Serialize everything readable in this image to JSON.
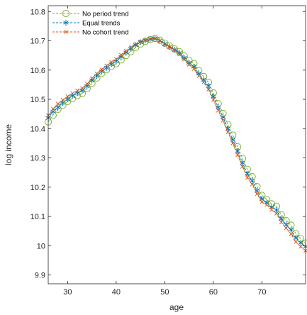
{
  "chart_data": {
    "type": "line",
    "xlabel": "age",
    "ylabel": "log income",
    "xlim": [
      26,
      79
    ],
    "ylim": [
      9.87,
      10.82
    ],
    "xticks": [
      30,
      40,
      50,
      60,
      70
    ],
    "yticks": [
      9.9,
      10,
      10.1,
      10.2,
      10.3,
      10.4,
      10.5,
      10.6,
      10.7,
      10.8
    ],
    "ytick_labels": [
      "9.9",
      "10",
      "10.1",
      "10.2",
      "10.3",
      "10.4",
      "10.5",
      "10.6",
      "10.7",
      "10.8"
    ],
    "grid": false,
    "legend_position": "top-left",
    "x": [
      26,
      27,
      28,
      29,
      30,
      31,
      32,
      33,
      34,
      35,
      36,
      37,
      38,
      39,
      40,
      41,
      42,
      43,
      44,
      45,
      46,
      47,
      48,
      49,
      50,
      51,
      52,
      53,
      54,
      55,
      56,
      57,
      58,
      59,
      60,
      61,
      62,
      63,
      64,
      65,
      66,
      67,
      68,
      69,
      70,
      71,
      72,
      73,
      74,
      75,
      76,
      77,
      78,
      79
    ],
    "series": [
      {
        "name": "No period trend",
        "color": "#77ac30",
        "marker": "circle",
        "values": [
          10.423,
          10.446,
          10.466,
          10.48,
          10.493,
          10.503,
          10.513,
          10.52,
          10.537,
          10.555,
          10.573,
          10.589,
          10.601,
          10.613,
          10.622,
          10.635,
          10.65,
          10.663,
          10.677,
          10.689,
          10.698,
          10.704,
          10.708,
          10.702,
          10.692,
          10.682,
          10.672,
          10.663,
          10.648,
          10.632,
          10.622,
          10.598,
          10.578,
          10.558,
          10.522,
          10.485,
          10.452,
          10.414,
          10.378,
          10.338,
          10.298,
          10.261,
          10.236,
          10.202,
          10.172,
          10.158,
          10.143,
          10.135,
          10.106,
          10.086,
          10.07,
          10.041,
          10.024,
          10.009
        ]
      },
      {
        "name": "Equal trends",
        "color": "#0072bd",
        "marker": "asterisk",
        "values": [
          10.436,
          10.458,
          10.472,
          10.488,
          10.5,
          10.512,
          10.521,
          10.53,
          10.545,
          10.565,
          10.58,
          10.595,
          10.608,
          10.62,
          10.63,
          10.645,
          10.66,
          10.673,
          10.685,
          10.695,
          10.701,
          10.705,
          10.707,
          10.701,
          10.69,
          10.68,
          10.67,
          10.659,
          10.642,
          10.625,
          10.612,
          10.588,
          10.567,
          10.546,
          10.51,
          10.473,
          10.44,
          10.4,
          10.362,
          10.323,
          10.283,
          10.246,
          10.222,
          10.188,
          10.16,
          10.148,
          10.132,
          10.122,
          10.092,
          10.072,
          10.054,
          10.027,
          10.01,
          9.997
        ]
      },
      {
        "name": "No cohort trend",
        "color": "#d95319",
        "marker": "x",
        "values": [
          10.445,
          10.468,
          10.485,
          10.498,
          10.51,
          10.52,
          10.53,
          10.538,
          10.553,
          10.572,
          10.588,
          10.602,
          10.615,
          10.627,
          10.637,
          10.652,
          10.665,
          10.677,
          10.688,
          10.697,
          10.702,
          10.706,
          10.708,
          10.7,
          10.688,
          10.678,
          10.667,
          10.654,
          10.637,
          10.619,
          10.604,
          10.58,
          10.558,
          10.534,
          10.498,
          10.462,
          10.428,
          10.388,
          10.35,
          10.31,
          10.27,
          10.233,
          10.21,
          10.177,
          10.15,
          10.14,
          10.123,
          10.11,
          10.08,
          10.06,
          10.04,
          10.013,
          9.997,
          9.983
        ]
      }
    ]
  }
}
